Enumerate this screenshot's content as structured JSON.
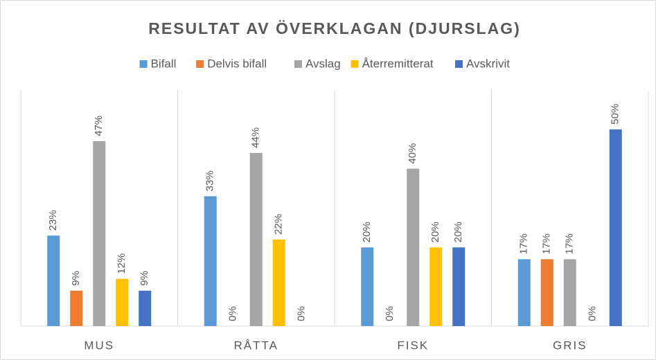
{
  "chart_data": {
    "type": "bar",
    "title": "RESULTAT AV ÖVERKLAGAN (DJURSLAG)",
    "categories": [
      "MUS",
      "RÅTTA",
      "FISK",
      "GRIS"
    ],
    "series": [
      {
        "name": "Bifall",
        "color": "#5b9bd5",
        "values": [
          23,
          33,
          20,
          17
        ],
        "value_labels": [
          "23%",
          "33%",
          "20%",
          "17%"
        ]
      },
      {
        "name": "Delvis bifall",
        "color": "#ed7d31",
        "values": [
          9,
          0,
          0,
          17
        ],
        "value_labels": [
          "9%",
          "0%",
          "0%",
          "17%"
        ]
      },
      {
        "name": "Avslag",
        "color": "#a5a5a5",
        "values": [
          47,
          44,
          40,
          17
        ],
        "value_labels": [
          "47%",
          "44%",
          "40%",
          "17%"
        ]
      },
      {
        "name": "Återremitterat",
        "color": "#ffc000",
        "values": [
          12,
          22,
          20,
          0
        ],
        "value_labels": [
          "12%",
          "22%",
          "20%",
          "0%"
        ]
      },
      {
        "name": "Avskrivit",
        "color": "#4472c4",
        "values": [
          9,
          0,
          20,
          50
        ],
        "value_labels": [
          "9%",
          "0%",
          "20%",
          "50%"
        ]
      }
    ],
    "ylim": [
      0,
      60
    ],
    "legend": "top"
  }
}
